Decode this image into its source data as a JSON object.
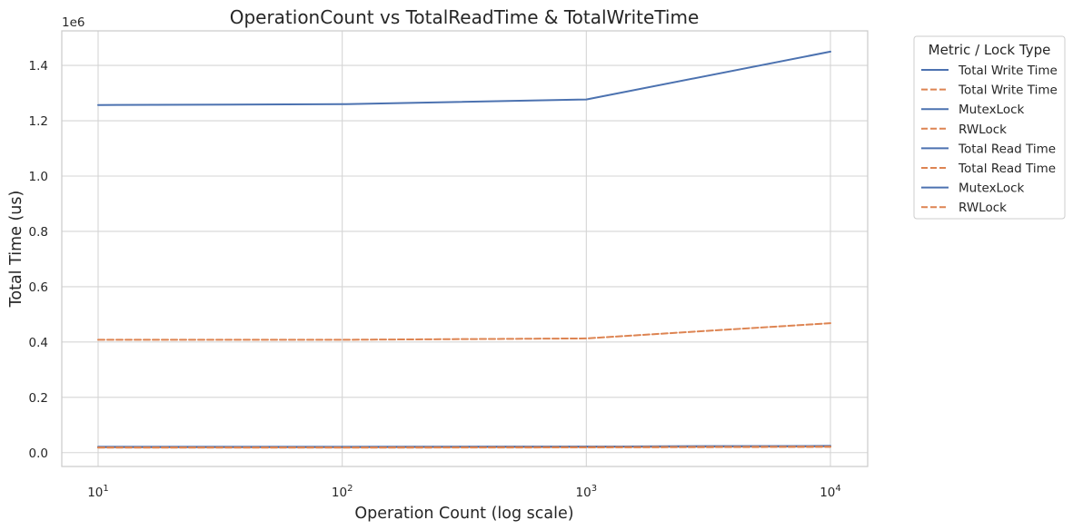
{
  "chart_data": {
    "type": "line",
    "title": "OperationCount vs TotalReadTime & TotalWriteTime",
    "xlabel": "Operation Count (log scale)",
    "ylabel": "Total Time (us)",
    "xscale": "log",
    "x": [
      10,
      100,
      1000,
      10000
    ],
    "x_tick_labels": [
      {
        "base": "10",
        "exp": "1"
      },
      {
        "base": "10",
        "exp": "2"
      },
      {
        "base": "10",
        "exp": "3"
      },
      {
        "base": "10",
        "exp": "4"
      }
    ],
    "y_tick_values": [
      0.0,
      0.2,
      0.4,
      0.6,
      0.8,
      1.0,
      1.2,
      1.4
    ],
    "y_tick_labels": [
      "0.0",
      "0.2",
      "0.4",
      "0.6",
      "0.8",
      "1.0",
      "1.2",
      "1.4"
    ],
    "y_offset_label": "1e6",
    "ylim": [
      -0.05,
      1.525
    ],
    "grid": true,
    "legend_title": "Metric / Lock Type",
    "legend_position": "outside-top-right",
    "series": [
      {
        "name": "Total Write Time",
        "values": [
          1.257,
          1.26,
          1.277,
          1.45
        ],
        "color": "#4c72b0",
        "dash": "solid"
      },
      {
        "name": "Total Write Time",
        "values": [
          0.408,
          0.408,
          0.413,
          0.468
        ],
        "color": "#dd8452",
        "dash": "dashed"
      },
      {
        "name": "MutexLock",
        "values": [
          0.021,
          0.021,
          0.022,
          0.024
        ],
        "color": "#4c72b0",
        "dash": "solid"
      },
      {
        "name": "RWLock",
        "values": [
          0.019,
          0.019,
          0.02,
          0.022
        ],
        "color": "#dd8452",
        "dash": "dashed"
      },
      {
        "name": "Total Read Time",
        "values": [
          0.02,
          0.02,
          0.021,
          0.023
        ],
        "color": "#4c72b0",
        "dash": "solid"
      },
      {
        "name": "Total Read Time",
        "values": [
          0.018,
          0.018,
          0.019,
          0.021
        ],
        "color": "#dd8452",
        "dash": "dashed"
      },
      {
        "name": "MutexLock",
        "values": [
          0.021,
          0.021,
          0.022,
          0.024
        ],
        "color": "#4c72b0",
        "dash": "solid"
      },
      {
        "name": "RWLock",
        "values": [
          0.019,
          0.019,
          0.02,
          0.022
        ],
        "color": "#dd8452",
        "dash": "dashed"
      }
    ],
    "legend_entries": [
      {
        "label": "Total Write Time",
        "color": "#4c72b0",
        "dash": "solid"
      },
      {
        "label": "Total Write Time",
        "color": "#dd8452",
        "dash": "dashed"
      },
      {
        "label": "MutexLock",
        "color": "#4c72b0",
        "dash": "solid"
      },
      {
        "label": "RWLock",
        "color": "#dd8452",
        "dash": "dashed"
      },
      {
        "label": "Total Read Time",
        "color": "#4c72b0",
        "dash": "solid"
      },
      {
        "label": "Total Read Time",
        "color": "#dd8452",
        "dash": "dashed"
      },
      {
        "label": "MutexLock",
        "color": "#4c72b0",
        "dash": "solid"
      },
      {
        "label": "RWLock",
        "color": "#dd8452",
        "dash": "dashed"
      }
    ]
  }
}
